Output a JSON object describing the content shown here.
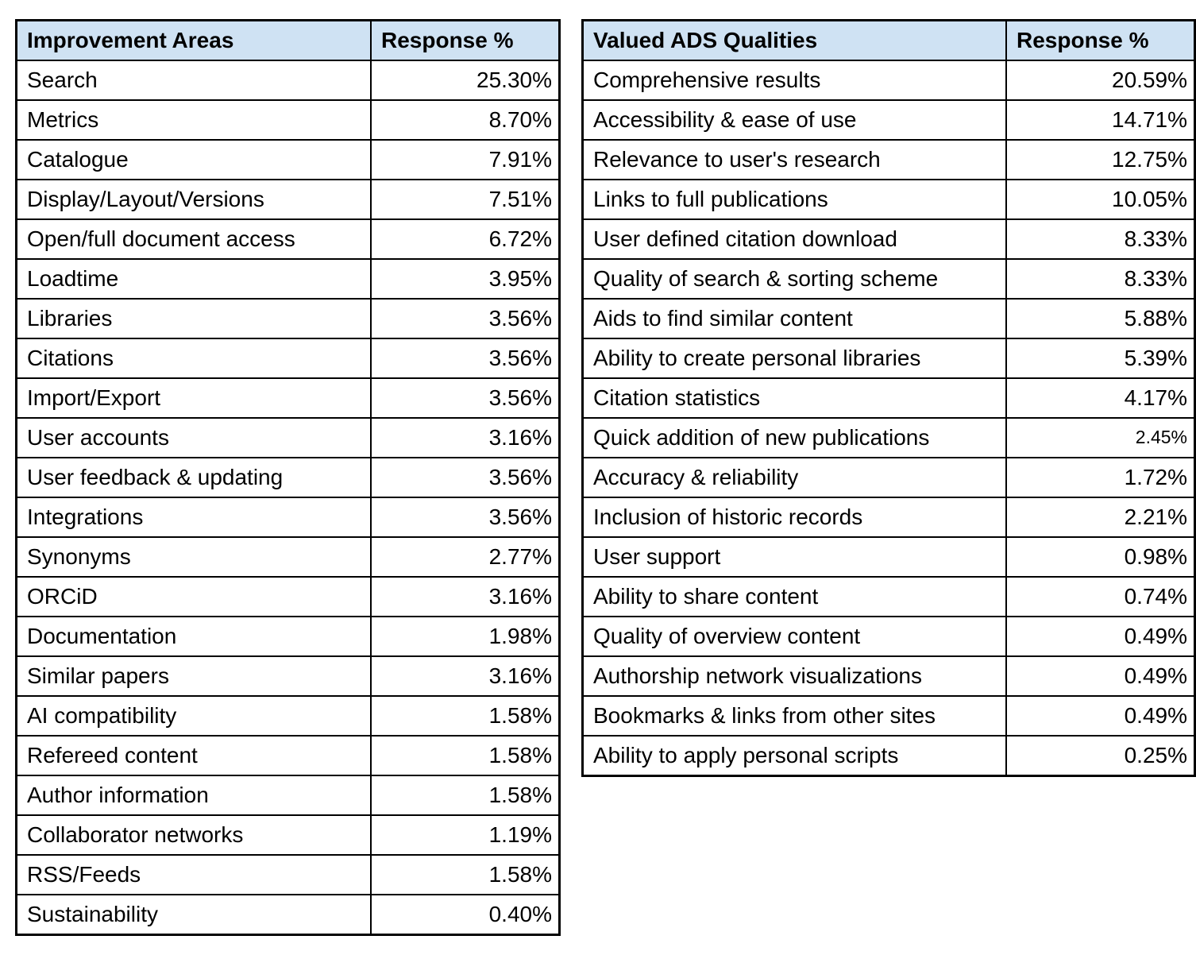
{
  "colors": {
    "header_bg": "#cfe2f3",
    "border": "#000000",
    "text": "#000000",
    "page_bg": "#ffffff"
  },
  "chart_data": [
    {
      "type": "table",
      "title": "Improvement Areas",
      "columns": [
        "Improvement Areas",
        "Response %"
      ],
      "headers": {
        "label": "Improvement Areas",
        "value": "Response %"
      },
      "rows": [
        {
          "label": "Search",
          "value_pct": 25.3,
          "value_text": "25.30%"
        },
        {
          "label": "Metrics",
          "value_pct": 8.7,
          "value_text": "8.70%"
        },
        {
          "label": "Catalogue",
          "value_pct": 7.91,
          "value_text": "7.91%"
        },
        {
          "label": "Display/Layout/Versions",
          "value_pct": 7.51,
          "value_text": "7.51%"
        },
        {
          "label": "Open/full document access",
          "value_pct": 6.72,
          "value_text": "6.72%"
        },
        {
          "label": "Loadtime",
          "value_pct": 3.95,
          "value_text": "3.95%"
        },
        {
          "label": "Libraries",
          "value_pct": 3.56,
          "value_text": "3.56%"
        },
        {
          "label": "Citations",
          "value_pct": 3.56,
          "value_text": "3.56%"
        },
        {
          "label": "Import/Export",
          "value_pct": 3.56,
          "value_text": "3.56%"
        },
        {
          "label": "User accounts",
          "value_pct": 3.16,
          "value_text": "3.16%"
        },
        {
          "label": "User feedback & updating",
          "value_pct": 3.56,
          "value_text": "3.56%"
        },
        {
          "label": "Integrations",
          "value_pct": 3.56,
          "value_text": "3.56%"
        },
        {
          "label": "Synonyms",
          "value_pct": 2.77,
          "value_text": "2.77%"
        },
        {
          "label": "ORCiD",
          "value_pct": 3.16,
          "value_text": "3.16%"
        },
        {
          "label": "Documentation",
          "value_pct": 1.98,
          "value_text": "1.98%"
        },
        {
          "label": "Similar papers",
          "value_pct": 3.16,
          "value_text": "3.16%"
        },
        {
          "label": "AI compatibility",
          "value_pct": 1.58,
          "value_text": "1.58%"
        },
        {
          "label": "Refereed content",
          "value_pct": 1.58,
          "value_text": "1.58%"
        },
        {
          "label": "Author information",
          "value_pct": 1.58,
          "value_text": "1.58%"
        },
        {
          "label": "Collaborator networks",
          "value_pct": 1.19,
          "value_text": "1.19%"
        },
        {
          "label": "RSS/Feeds",
          "value_pct": 1.58,
          "value_text": "1.58%"
        },
        {
          "label": "Sustainability",
          "value_pct": 0.4,
          "value_text": "0.40%"
        }
      ]
    },
    {
      "type": "table",
      "title": "Valued ADS Qualities",
      "columns": [
        "Valued ADS Qualities",
        "Response %"
      ],
      "headers": {
        "label": "Valued ADS Qualities",
        "value": "Response %"
      },
      "rows": [
        {
          "label": "Comprehensive results",
          "value_pct": 20.59,
          "value_text": "20.59%"
        },
        {
          "label": "Accessibility & ease of use",
          "value_pct": 14.71,
          "value_text": "14.71%"
        },
        {
          "label": "Relevance to user's research",
          "value_pct": 12.75,
          "value_text": "12.75%"
        },
        {
          "label": "Links to full publications",
          "value_pct": 10.05,
          "value_text": "10.05%"
        },
        {
          "label": "User defined citation download",
          "value_pct": 8.33,
          "value_text": "8.33%"
        },
        {
          "label": "Quality of search & sorting scheme",
          "value_pct": 8.33,
          "value_text": "8.33%"
        },
        {
          "label": "Aids to find similar content",
          "value_pct": 5.88,
          "value_text": "5.88%"
        },
        {
          "label": "Ability to create personal libraries",
          "value_pct": 5.39,
          "value_text": "5.39%"
        },
        {
          "label": "Citation statistics",
          "value_pct": 4.17,
          "value_text": "4.17%"
        },
        {
          "label": "Quick addition of new publications",
          "value_pct": 2.45,
          "value_text": "2.45%",
          "small_value": true
        },
        {
          "label": "Accuracy & reliability",
          "value_pct": 1.72,
          "value_text": "1.72%"
        },
        {
          "label": "Inclusion of historic records",
          "value_pct": 2.21,
          "value_text": "2.21%"
        },
        {
          "label": "User support",
          "value_pct": 0.98,
          "value_text": "0.98%"
        },
        {
          "label": "Ability to share content",
          "value_pct": 0.74,
          "value_text": "0.74%"
        },
        {
          "label": "Quality of overview content",
          "value_pct": 0.49,
          "value_text": "0.49%"
        },
        {
          "label": "Authorship network visualizations",
          "value_pct": 0.49,
          "value_text": "0.49%"
        },
        {
          "label": "Bookmarks & links from other sites",
          "value_pct": 0.49,
          "value_text": "0.49%"
        },
        {
          "label": "Ability to apply personal scripts",
          "value_pct": 0.25,
          "value_text": "0.25%"
        }
      ]
    }
  ]
}
